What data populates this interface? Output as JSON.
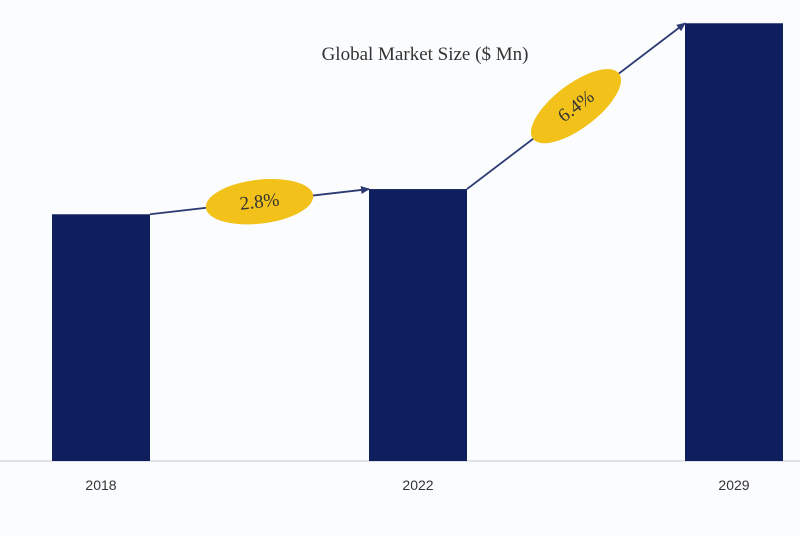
{
  "chart_data": {
    "type": "bar",
    "title": "Global Market Size ($ Mn)",
    "categories": [
      "2018",
      "2022",
      "2029"
    ],
    "values": [
      186,
      205,
      330
    ],
    "ylim": [
      0,
      340
    ],
    "grid": false,
    "annotations": [
      {
        "label": "2.8%",
        "from": "2018",
        "to": "2022"
      },
      {
        "label": "6.4%",
        "from": "2022",
        "to": "2029"
      }
    ],
    "colors": {
      "bar": "#0f1f5e",
      "badge": "#f2c21a",
      "arrow": "#2b3a72",
      "axis": "#d8d8de",
      "text": "#333333"
    }
  }
}
